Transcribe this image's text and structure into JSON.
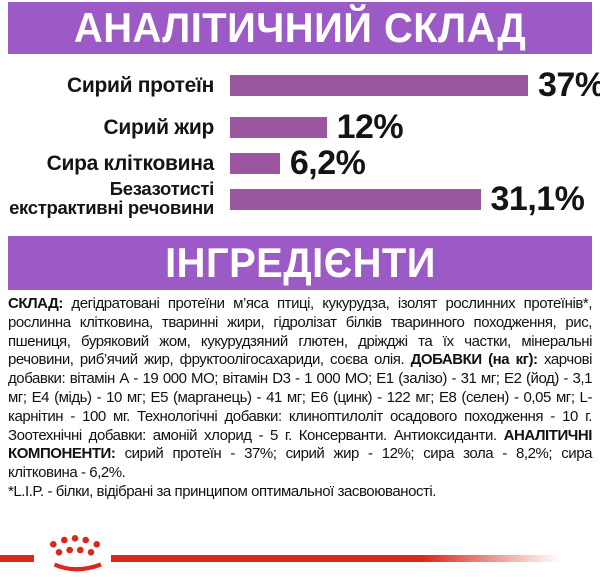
{
  "colors": {
    "header_purple": "#9C5AC6",
    "bar_purple": "#9A57A0",
    "brand_red": "#DA291C",
    "text_black": "#141414"
  },
  "sections": {
    "analytical": {
      "title": "АНАЛІТИЧНИЙ СКЛАД"
    },
    "ingredients": {
      "title": "ІНГРЕДІЄНТИ"
    }
  },
  "chart_data": {
    "type": "bar",
    "orientation": "horizontal",
    "title": "АНАЛІТИЧНИЙ СКЛАД",
    "categories": [
      "Сирий протеїн",
      "Сирий жир",
      "Сира клітковина",
      "Безазотисті\nекстрактивні речовини"
    ],
    "values": [
      37,
      12,
      6.2,
      31.1
    ],
    "value_labels": [
      "37%",
      "12%",
      "6,2%",
      "31,1%"
    ],
    "unit": "%",
    "xlim": [
      0,
      37
    ],
    "grid": false,
    "legend": false,
    "bar_color": "#9A57A0"
  },
  "ingredients_text": {
    "sklad_label": "СКЛАД:",
    "sklad_text": " дегідратовані протеїни м’яса птиці, кукурудза, ізолят рослинних протеїнів*, рослинна клітковина, тваринні жири, гідролізат білків тваринного походження, рис, пшениця, буряковий жом, кукурудзяний глютен, дріжджі та їх частки, мінеральні речовини, риб’ячий жир, фруктоолігосахариди, соєва олія. ",
    "dobavky_label": "ДОБАВКИ (на кг):",
    "dobavky_text": " харчові добавки: вітамін А - 19 000 МО; вітамін D3 - 1 000 МО; Е1 (залізо) - 31 мг; Е2 (йод) - 3,1 мг; Е4 (мідь) - 10 мг; Е5 (марганець) - 41 мг; Е6 (цинк) - 122 мг; Е8 (селен) - 0,05 мг; L-карнітин - 100 мг. Технологічні добавки: клиноптилоліт осадового походження - 10 г. Зоотехнічні добавки: амоній хлорид - 5 г. Консерванти. Антиоксиданти. ",
    "analit_label": "АНАЛІТИЧНІ КОМПОНЕНТИ:",
    "analit_text": " сирий протеїн - 37%; сирий жир - 12%; сира зола - 8,2%; сира клітковина - 6,2%.",
    "footnote": "*L.I.P. - білки, відібрані за принципом оптимальної засвоюваності."
  }
}
